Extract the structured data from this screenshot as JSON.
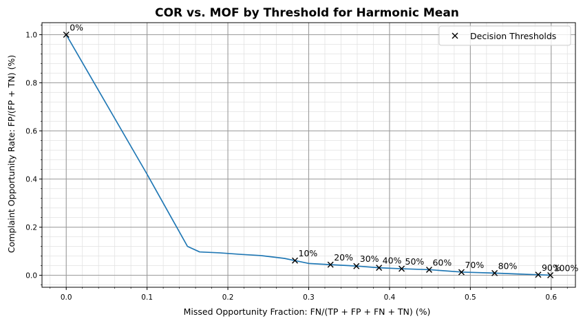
{
  "chart_data": {
    "type": "line",
    "title": "COR vs. MOF by Threshold for Harmonic Mean",
    "xlabel": "Missed Opportunity Fraction: FN/(TP + FP + FN + TN) (%)",
    "ylabel": "Complaint Opportunity Rate: FP/(FP + TN) (%)",
    "xlim": [
      -0.03,
      0.63
    ],
    "ylim": [
      -0.05,
      1.05
    ],
    "x_ticks": [
      0.0,
      0.1,
      0.2,
      0.3,
      0.4,
      0.5,
      0.6
    ],
    "x_tick_labels": [
      "0.0",
      "0.1",
      "0.2",
      "0.3",
      "0.4",
      "0.5",
      "0.6"
    ],
    "y_ticks": [
      0.0,
      0.2,
      0.4,
      0.6,
      0.8,
      1.0
    ],
    "y_tick_labels": [
      "0.0",
      "0.2",
      "0.4",
      "0.6",
      "0.8",
      "1.0"
    ],
    "grid": true,
    "minor_grid": true,
    "line_color": "#1f77b4",
    "marker_color": "#000000",
    "legend_position": "top-right",
    "series": [
      {
        "type": "line",
        "x": [
          0.0,
          0.05,
          0.1,
          0.15,
          0.165,
          0.19,
          0.215,
          0.24,
          0.255,
          0.27,
          0.283,
          0.3,
          0.327,
          0.36,
          0.387,
          0.415,
          0.45,
          0.49,
          0.53,
          0.56,
          0.585,
          0.6
        ],
        "y": [
          1.0,
          0.71,
          0.42,
          0.12,
          0.097,
          0.093,
          0.087,
          0.082,
          0.076,
          0.07,
          0.061,
          0.049,
          0.044,
          0.038,
          0.031,
          0.027,
          0.023,
          0.013,
          0.009,
          0.005,
          0.002,
          0.0
        ]
      },
      {
        "name": "Decision Thresholds",
        "type": "scatter",
        "marker": "x",
        "x": [
          0.0,
          0.283,
          0.327,
          0.359,
          0.387,
          0.415,
          0.449,
          0.489,
          0.53,
          0.584,
          0.599
        ],
        "y": [
          1.0,
          0.061,
          0.044,
          0.038,
          0.031,
          0.027,
          0.023,
          0.013,
          0.009,
          0.002,
          0.0
        ],
        "labels": [
          "0%",
          "10%",
          "20%",
          "30%",
          "40%",
          "50%",
          "60%",
          "70%",
          "80%",
          "90%",
          "100%"
        ]
      }
    ]
  }
}
